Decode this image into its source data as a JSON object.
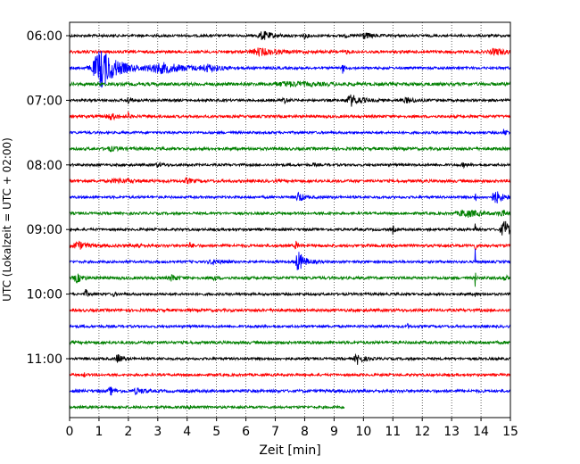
{
  "chart_data": {
    "type": "line",
    "title": "",
    "xlabel": "Zeit  [min]",
    "ylabel": "UTC (Lokalzeit = UTC + 02:00)",
    "xlim": [
      0,
      15
    ],
    "x_ticks": [
      "0",
      "1",
      "2",
      "3",
      "4",
      "5",
      "6",
      "7",
      "8",
      "9",
      "10",
      "11",
      "12",
      "13",
      "14",
      "15"
    ],
    "y_tick_labels": [
      "06:00",
      "07:00",
      "08:00",
      "09:00",
      "10:00",
      "11:00"
    ],
    "grid": "vertical dotted",
    "legend": "none",
    "trace_colors": [
      "#000000",
      "#ff0000",
      "#0000ff",
      "#008000"
    ],
    "traces": [
      {
        "start": "06:00",
        "color": "#000000",
        "x_end": 15,
        "base_amp": 1.4,
        "events": [
          {
            "t": 6.6,
            "amp": 4.5,
            "w": 0.35
          },
          {
            "t": 8.0,
            "amp": 2.5,
            "w": 0.1
          },
          {
            "t": 9.4,
            "amp": 2.0,
            "w": 0.05
          },
          {
            "t": 10.0,
            "amp": 3.5,
            "w": 0.3
          }
        ]
      },
      {
        "start": "06:15",
        "color": "#ff0000",
        "x_end": 15,
        "base_amp": 1.6,
        "events": [
          {
            "t": 6.5,
            "amp": 3.5,
            "w": 0.6
          },
          {
            "t": 9.4,
            "amp": 2.5,
            "w": 0.05
          },
          {
            "t": 14.5,
            "amp": 3.0,
            "w": 0.4
          }
        ]
      },
      {
        "start": "06:30",
        "color": "#0000ff",
        "x_end": 15,
        "base_amp": 1.4,
        "events": [
          {
            "t": 1.1,
            "amp": 22.0,
            "w": 0.55
          },
          {
            "t": 3.2,
            "amp": 5.0,
            "w": 1.0
          },
          {
            "t": 4.7,
            "amp": 3.0,
            "w": 0.4
          },
          {
            "t": 9.3,
            "amp": 6.0,
            "w": 0.05
          }
        ]
      },
      {
        "start": "06:45",
        "color": "#008000",
        "x_end": 15,
        "base_amp": 1.8,
        "events": [
          {
            "t": 7.5,
            "amp": 2.0,
            "w": 1.0
          }
        ]
      },
      {
        "start": "07:00",
        "color": "#000000",
        "x_end": 15,
        "base_amp": 1.4,
        "events": [
          {
            "t": 2.0,
            "amp": 4.0,
            "w": 0.1
          },
          {
            "t": 7.3,
            "amp": 4.0,
            "w": 0.1
          },
          {
            "t": 9.6,
            "amp": 6.0,
            "w": 0.35
          },
          {
            "t": 11.5,
            "amp": 2.5,
            "w": 0.3
          }
        ]
      },
      {
        "start": "07:15",
        "color": "#ff0000",
        "x_end": 15,
        "base_amp": 1.5,
        "events": [
          {
            "t": 1.4,
            "amp": 3.0,
            "w": 0.3
          },
          {
            "t": 2.0,
            "amp": 4.0,
            "w": 0.05
          }
        ]
      },
      {
        "start": "07:30",
        "color": "#0000ff",
        "x_end": 15,
        "base_amp": 1.4,
        "events": [
          {
            "t": 14.8,
            "amp": 4.0,
            "w": 0.1
          }
        ]
      },
      {
        "start": "07:45",
        "color": "#008000",
        "x_end": 15,
        "base_amp": 1.6,
        "events": [
          {
            "t": 1.4,
            "amp": 2.0,
            "w": 0.3
          }
        ]
      },
      {
        "start": "08:00",
        "color": "#000000",
        "x_end": 15,
        "base_amp": 1.4,
        "events": [
          {
            "t": 3.0,
            "amp": 2.0,
            "w": 0.2
          },
          {
            "t": 8.3,
            "amp": 2.0,
            "w": 0.05
          },
          {
            "t": 13.4,
            "amp": 2.0,
            "w": 0.1
          }
        ]
      },
      {
        "start": "08:15",
        "color": "#ff0000",
        "x_end": 15,
        "base_amp": 1.6,
        "events": [
          {
            "t": 1.7,
            "amp": 2.0,
            "w": 0.5
          },
          {
            "t": 4.0,
            "amp": 2.5,
            "w": 0.2
          }
        ]
      },
      {
        "start": "08:30",
        "color": "#0000ff",
        "x_end": 15,
        "base_amp": 1.4,
        "events": [
          {
            "t": 7.8,
            "amp": 6.0,
            "w": 0.15
          },
          {
            "t": 13.8,
            "amp": 16.0,
            "w": 0.02
          },
          {
            "t": 14.5,
            "amp": 7.0,
            "w": 0.25
          }
        ]
      },
      {
        "start": "08:45",
        "color": "#008000",
        "x_end": 15,
        "base_amp": 1.4,
        "events": [
          {
            "t": 8.8,
            "amp": 2.5,
            "w": 0.05
          },
          {
            "t": 13.5,
            "amp": 4.0,
            "w": 0.5
          },
          {
            "t": 14.7,
            "amp": 3.0,
            "w": 0.2
          }
        ]
      },
      {
        "start": "09:00",
        "color": "#000000",
        "x_end": 15,
        "base_amp": 1.4,
        "events": [
          {
            "t": 11.0,
            "amp": 4.5,
            "w": 0.05
          },
          {
            "t": 13.8,
            "amp": 14.0,
            "w": 0.02
          },
          {
            "t": 14.8,
            "amp": 10.0,
            "w": 0.22
          }
        ]
      },
      {
        "start": "09:15",
        "color": "#ff0000",
        "x_end": 15,
        "base_amp": 1.6,
        "events": [
          {
            "t": 0.3,
            "amp": 4.0,
            "w": 0.3
          },
          {
            "t": 2.3,
            "amp": 3.0,
            "w": 0.15
          },
          {
            "t": 4.1,
            "amp": 2.5,
            "w": 0.1
          },
          {
            "t": 7.7,
            "amp": 6.0,
            "w": 0.05
          },
          {
            "t": 13.8,
            "amp": 14.0,
            "w": 0.02
          }
        ]
      },
      {
        "start": "09:30",
        "color": "#0000ff",
        "x_end": 15,
        "base_amp": 1.4,
        "events": [
          {
            "t": 4.9,
            "amp": 2.5,
            "w": 0.3
          },
          {
            "t": 7.8,
            "amp": 11.0,
            "w": 0.22
          },
          {
            "t": 13.8,
            "amp": 16.0,
            "w": 0.02
          }
        ]
      },
      {
        "start": "09:45",
        "color": "#008000",
        "x_end": 15,
        "base_amp": 1.6,
        "events": [
          {
            "t": 0.25,
            "amp": 4.5,
            "w": 0.2
          },
          {
            "t": 3.5,
            "amp": 3.5,
            "w": 0.15
          },
          {
            "t": 4.9,
            "amp": 2.5,
            "w": 0.1
          },
          {
            "t": 13.8,
            "amp": 10.0,
            "w": 0.02
          },
          {
            "t": 14.8,
            "amp": 3.0,
            "w": 0.1
          }
        ]
      },
      {
        "start": "10:00",
        "color": "#000000",
        "x_end": 15,
        "base_amp": 1.4,
        "events": [
          {
            "t": 0.55,
            "amp": 4.5,
            "w": 0.08
          },
          {
            "t": 1.5,
            "amp": 2.5,
            "w": 0.05
          },
          {
            "t": 13.8,
            "amp": 4.0,
            "w": 0.02
          }
        ]
      },
      {
        "start": "10:15",
        "color": "#ff0000",
        "x_end": 15,
        "base_amp": 1.6,
        "events": []
      },
      {
        "start": "10:30",
        "color": "#0000ff",
        "x_end": 15,
        "base_amp": 1.4,
        "events": [
          {
            "t": 11.5,
            "amp": 2.5,
            "w": 0.05
          }
        ]
      },
      {
        "start": "10:45",
        "color": "#008000",
        "x_end": 15,
        "base_amp": 1.6,
        "events": []
      },
      {
        "start": "11:00",
        "color": "#000000",
        "x_end": 15,
        "base_amp": 1.4,
        "events": [
          {
            "t": 1.65,
            "amp": 6.0,
            "w": 0.12
          },
          {
            "t": 9.8,
            "amp": 5.5,
            "w": 0.2
          }
        ]
      },
      {
        "start": "11:15",
        "color": "#ff0000",
        "x_end": 15,
        "base_amp": 1.4,
        "events": [
          {
            "t": 0.5,
            "amp": 2.0,
            "w": 0.05
          }
        ]
      },
      {
        "start": "11:30",
        "color": "#0000ff",
        "x_end": 15,
        "base_amp": 1.6,
        "events": [
          {
            "t": 1.4,
            "amp": 4.0,
            "w": 0.15
          },
          {
            "t": 2.3,
            "amp": 3.0,
            "w": 0.25
          }
        ]
      },
      {
        "start": "11:45",
        "color": "#008000",
        "x_end": 9.35,
        "base_amp": 1.4,
        "events": [
          {
            "t": 4.1,
            "amp": 2.0,
            "w": 0.1
          }
        ]
      }
    ]
  }
}
